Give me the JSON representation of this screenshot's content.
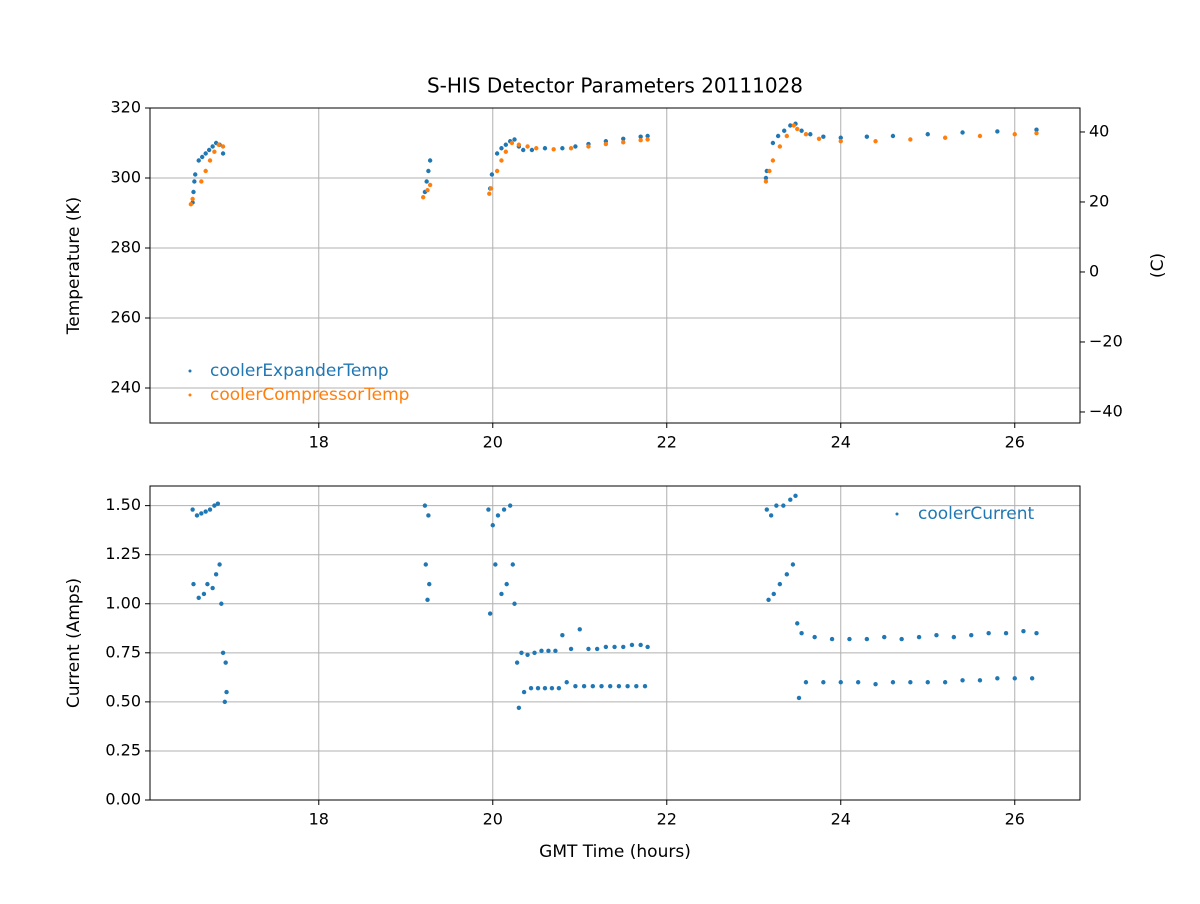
{
  "chart_data": [
    {
      "type": "scatter",
      "title": "S-HIS Detector Parameters 20111028",
      "y_label": "Temperature (K)",
      "y2_label": "(C)",
      "xlim": [
        16.06,
        26.75
      ],
      "xticks": [
        18,
        20,
        22,
        24,
        26
      ],
      "ylim": [
        230,
        320
      ],
      "yticks": [
        240,
        260,
        280,
        300,
        320
      ],
      "y2lim": [
        -43.15,
        46.85
      ],
      "y2ticks": [
        {
          "value": -40,
          "label": "−40"
        },
        {
          "value": -20,
          "label": "−20"
        },
        0,
        20,
        40
      ],
      "grid": true,
      "legend": "lower left",
      "series": [
        {
          "name": "coolerExpanderTemp",
          "color": "#1f77b4",
          "x": [
            16.55,
            16.56,
            16.57,
            16.58,
            16.62,
            16.66,
            16.7,
            16.74,
            16.78,
            16.82,
            16.86,
            16.9,
            19.22,
            19.24,
            19.26,
            19.28,
            19.97,
            19.99,
            20.05,
            20.1,
            20.15,
            20.2,
            20.25,
            20.3,
            20.35,
            20.45,
            20.6,
            20.8,
            20.95,
            21.1,
            21.3,
            21.5,
            21.7,
            21.78,
            23.14,
            23.15,
            23.22,
            23.28,
            23.35,
            23.42,
            23.48,
            23.55,
            23.65,
            23.8,
            24.0,
            24.3,
            24.6,
            25.0,
            25.4,
            25.8,
            26.25
          ],
          "values": [
            293,
            296,
            299,
            301,
            305,
            306,
            307,
            308,
            309,
            310,
            309.5,
            307,
            296,
            299,
            302,
            305,
            297,
            301,
            307,
            308.5,
            309.5,
            310.5,
            311,
            309,
            308,
            308,
            308.5,
            308.5,
            309,
            309.7,
            310.5,
            311.2,
            311.8,
            312,
            300,
            302,
            310,
            312,
            313.5,
            315,
            315.5,
            313.5,
            312.5,
            311.8,
            311.5,
            311.8,
            312,
            312.5,
            313,
            313.3,
            313.8
          ]
        },
        {
          "name": "coolerCompressorTemp",
          "color": "#ff7f0e",
          "x": [
            16.53,
            16.55,
            16.65,
            16.7,
            16.75,
            16.8,
            16.85,
            16.9,
            19.2,
            19.25,
            19.28,
            19.96,
            19.98,
            20.05,
            20.1,
            20.15,
            20.22,
            20.3,
            20.4,
            20.5,
            20.7,
            20.9,
            21.1,
            21.3,
            21.5,
            21.7,
            21.78,
            23.14,
            23.18,
            23.22,
            23.3,
            23.38,
            23.46,
            23.5,
            23.6,
            23.75,
            24.0,
            24.4,
            24.8,
            25.2,
            25.6,
            26.0,
            26.25
          ],
          "values": [
            292.5,
            294,
            299,
            302,
            305,
            307.5,
            309.5,
            309,
            294.5,
            296.5,
            298,
            295.5,
            297,
            302,
            305,
            307.5,
            310,
            309.5,
            309,
            308.5,
            308.2,
            308.5,
            309,
            309.7,
            310.2,
            310.8,
            311,
            299,
            302,
            305,
            309,
            312,
            315,
            314,
            312.5,
            311.2,
            310.5,
            310.5,
            311,
            311.5,
            312,
            312.5,
            312.8
          ]
        }
      ]
    },
    {
      "type": "scatter",
      "x_label": "GMT Time (hours)",
      "y_label": "Current (Amps)",
      "xlim": [
        16.06,
        26.75
      ],
      "xticks": [
        18,
        20,
        22,
        24,
        26
      ],
      "ylim": [
        0,
        1.6
      ],
      "yticks": [
        {
          "value": 0,
          "label": "0.00"
        },
        {
          "value": 0.25,
          "label": "0.25"
        },
        {
          "value": 0.5,
          "label": "0.50"
        },
        {
          "value": 0.75,
          "label": "0.75"
        },
        {
          "value": 1,
          "label": "1.00"
        },
        {
          "value": 1.25,
          "label": "1.25"
        },
        {
          "value": 1.5,
          "label": "1.50"
        }
      ],
      "grid": true,
      "legend": "upper right",
      "series": [
        {
          "name": "coolerCurrent",
          "color": "#1f77b4",
          "x": [
            16.55,
            16.56,
            16.6,
            16.62,
            16.65,
            16.68,
            16.7,
            16.72,
            16.75,
            16.78,
            16.8,
            16.82,
            16.84,
            16.86,
            16.88,
            16.9,
            16.92,
            16.93,
            16.94,
            19.22,
            19.23,
            19.25,
            19.26,
            19.27,
            19.95,
            19.97,
            20.0,
            20.03,
            20.06,
            20.1,
            20.13,
            20.16,
            20.2,
            20.23,
            20.25,
            20.28,
            20.3,
            20.33,
            20.36,
            20.4,
            20.44,
            20.48,
            20.52,
            20.56,
            20.6,
            20.64,
            20.68,
            20.72,
            20.76,
            20.8,
            20.85,
            20.9,
            20.95,
            21.0,
            21.05,
            21.1,
            21.15,
            21.2,
            21.25,
            21.3,
            21.35,
            21.4,
            21.45,
            21.5,
            21.55,
            21.6,
            21.65,
            21.7,
            21.75,
            21.78,
            23.15,
            23.17,
            23.2,
            23.23,
            23.26,
            23.3,
            23.34,
            23.38,
            23.42,
            23.45,
            23.48,
            23.5,
            23.52,
            23.55,
            23.6,
            23.7,
            23.8,
            23.9,
            24.0,
            24.1,
            24.2,
            24.3,
            24.4,
            24.5,
            24.6,
            24.7,
            24.8,
            24.9,
            25.0,
            25.1,
            25.2,
            25.3,
            25.4,
            25.5,
            25.6,
            25.7,
            25.8,
            25.9,
            26.0,
            26.1,
            26.2,
            26.25
          ],
          "values": [
            1.48,
            1.1,
            1.45,
            1.03,
            1.46,
            1.05,
            1.47,
            1.1,
            1.48,
            1.08,
            1.5,
            1.15,
            1.51,
            1.2,
            1.0,
            0.75,
            0.5,
            0.7,
            0.55,
            1.5,
            1.2,
            1.02,
            1.45,
            1.1,
            1.48,
            0.95,
            1.4,
            1.2,
            1.45,
            1.05,
            1.48,
            1.1,
            1.5,
            1.2,
            1.0,
            0.7,
            0.47,
            0.75,
            0.55,
            0.74,
            0.57,
            0.75,
            0.57,
            0.76,
            0.57,
            0.76,
            0.57,
            0.76,
            0.57,
            0.84,
            0.6,
            0.77,
            0.58,
            0.87,
            0.58,
            0.77,
            0.58,
            0.77,
            0.58,
            0.78,
            0.58,
            0.78,
            0.58,
            0.78,
            0.58,
            0.79,
            0.58,
            0.79,
            0.58,
            0.78,
            1.48,
            1.02,
            1.45,
            1.05,
            1.5,
            1.1,
            1.5,
            1.15,
            1.53,
            1.2,
            1.55,
            0.9,
            0.52,
            0.85,
            0.6,
            0.83,
            0.6,
            0.82,
            0.6,
            0.82,
            0.6,
            0.82,
            0.59,
            0.83,
            0.6,
            0.82,
            0.6,
            0.83,
            0.6,
            0.84,
            0.6,
            0.83,
            0.61,
            0.84,
            0.61,
            0.85,
            0.62,
            0.85,
            0.62,
            0.86,
            0.62,
            0.85
          ]
        }
      ]
    }
  ]
}
